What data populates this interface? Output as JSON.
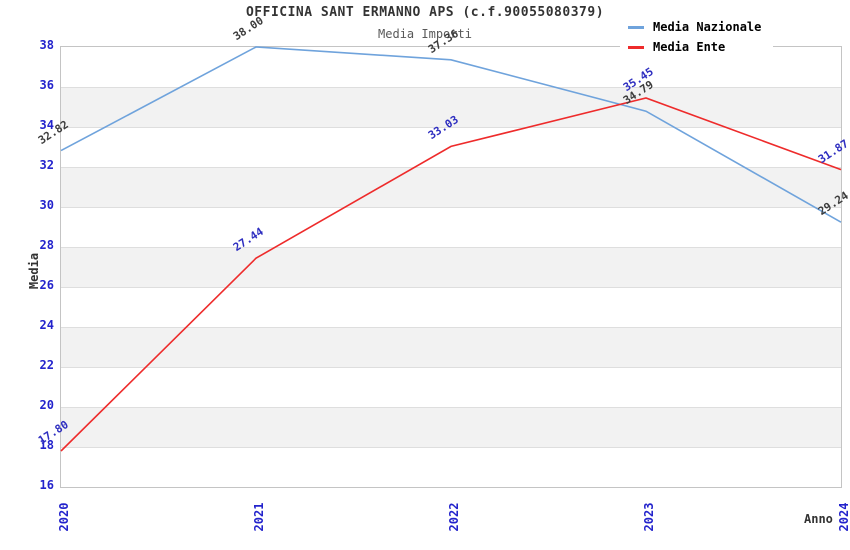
{
  "header": {
    "title": "OFFICINA SANT ERMANNO APS (c.f.90055080379)",
    "subtitle": "Media Importi"
  },
  "axes": {
    "y_label": "Media",
    "x_label": "Anno"
  },
  "chart_data": {
    "type": "line",
    "title": "OFFICINA SANT ERMANNO APS (c.f.90055080379)",
    "subtitle": "Media Importi",
    "xlabel": "Anno",
    "ylabel": "Media",
    "x": [
      "2020",
      "2021",
      "2022",
      "2023",
      "2024"
    ],
    "series": [
      {
        "name": "Media Nazionale",
        "color": "#6fa3dc",
        "label_color": "#3c3c3c",
        "values": [
          32.82,
          38.0,
          37.36,
          34.79,
          29.24
        ]
      },
      {
        "name": "Media Ente",
        "color": "#ee2b2b",
        "label_color": "#2e2ec0",
        "values": [
          17.8,
          27.44,
          33.03,
          35.45,
          31.87
        ]
      }
    ],
    "ylim": [
      16,
      38
    ],
    "ytick_step": 2,
    "grid": true,
    "band_color": "#f2f2f2",
    "tick_color": "#2323cc",
    "legend_position": "top-right"
  }
}
